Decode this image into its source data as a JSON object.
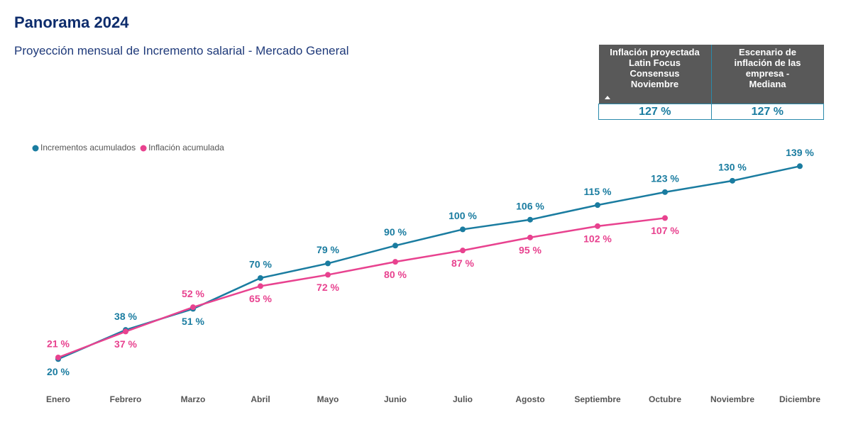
{
  "header": {
    "title": "Panorama 2024",
    "subtitle": "Proyección mensual de Incremento salarial - Mercado General"
  },
  "table": {
    "headers": [
      [
        "Inflación proyectada",
        "Latin Focus",
        "Consensus",
        "Noviembre"
      ],
      [
        "Escenario de",
        "inflación de las",
        "empresa -",
        "Mediana"
      ]
    ],
    "rows": [
      [
        "127 %",
        "127 %"
      ]
    ]
  },
  "chart_data": {
    "type": "line",
    "categories": [
      "Enero",
      "Febrero",
      "Marzo",
      "Abril",
      "Mayo",
      "Junio",
      "Julio",
      "Agosto",
      "Septiembre",
      "Octubre",
      "Noviembre",
      "Diciembre"
    ],
    "series": [
      {
        "name": "Incrementos acumulados",
        "color": "#1a7ca0",
        "values": [
          20,
          38,
          51,
          70,
          79,
          90,
          100,
          106,
          115,
          123,
          130,
          139
        ],
        "value_labels": [
          "20 %",
          "38 %",
          "51 %",
          "70 %",
          "79 %",
          "90 %",
          "100 %",
          "106 %",
          "115 %",
          "123 %",
          "130 %",
          "139 %"
        ]
      },
      {
        "name": "Inflación acumulada",
        "color": "#e8428f",
        "values": [
          21,
          37,
          52,
          65,
          72,
          80,
          87,
          95,
          102,
          107,
          null,
          null
        ],
        "value_labels": [
          "21 %",
          "37 %",
          "52 %",
          "65 %",
          "72 %",
          "80 %",
          "87 %",
          "95 %",
          "102 %",
          "107 %",
          null,
          null
        ]
      }
    ],
    "ylim": [
      0,
      140
    ],
    "legend": "top-left"
  }
}
